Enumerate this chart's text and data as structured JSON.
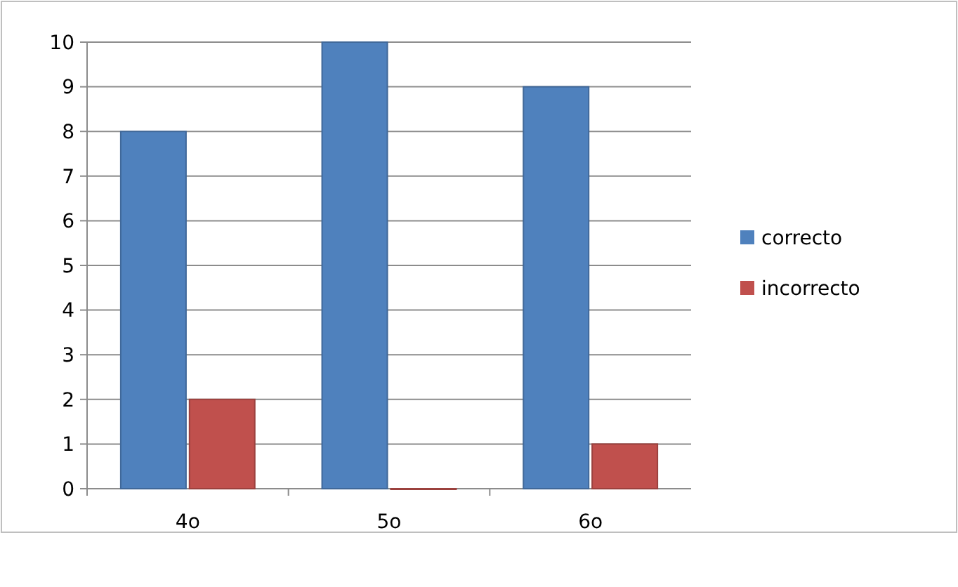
{
  "chart_data": {
    "type": "bar",
    "categories": [
      "4o",
      "5o",
      "6o"
    ],
    "series": [
      {
        "name": "correcto",
        "color": "#4f81bd",
        "values": [
          8,
          10,
          9
        ]
      },
      {
        "name": "incorrecto",
        "color": "#c0504d",
        "values": [
          2,
          0,
          1
        ]
      }
    ],
    "ylim": [
      0,
      10
    ],
    "yticks": [
      0,
      1,
      2,
      3,
      4,
      5,
      6,
      7,
      8,
      9,
      10
    ],
    "grid": "y",
    "legend": "right"
  }
}
